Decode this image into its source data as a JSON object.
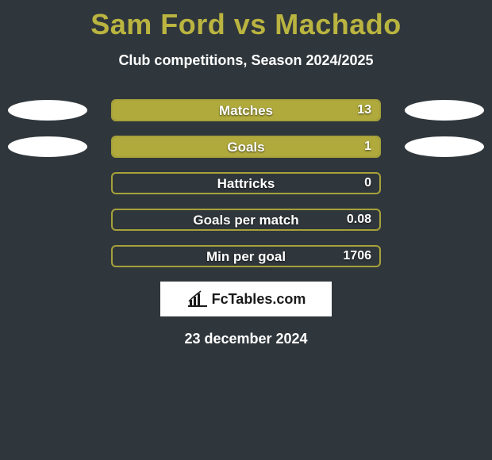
{
  "background_color": "#30373c",
  "title": {
    "text": "Sam Ford vs Machado",
    "color": "#bab440",
    "fontsize": 36
  },
  "subtitle": {
    "text": "Club competitions, Season 2024/2025",
    "color": "#ffffff",
    "fontsize": 18
  },
  "ellipse": {
    "color": "#ffffff",
    "width": 100,
    "height": 26
  },
  "bar_style": {
    "track_width": 340,
    "track_height": 28,
    "border_color": "#a7a13a",
    "fill_color": "#b0aa3d",
    "border_radius": 6,
    "label_color": "#ffffff",
    "value_color": "#ffffff",
    "label_fontsize": 17,
    "value_fontsize": 16
  },
  "stats": [
    {
      "label": "Matches",
      "left_pct": 0,
      "right_pct": 100,
      "value_right": "13",
      "show_ellipses": true
    },
    {
      "label": "Goals",
      "left_pct": 0,
      "right_pct": 100,
      "value_right": "1",
      "show_ellipses": true
    },
    {
      "label": "Hattricks",
      "left_pct": 0,
      "right_pct": 0,
      "value_right": "0",
      "show_ellipses": false
    },
    {
      "label": "Goals per match",
      "left_pct": 0,
      "right_pct": 0,
      "value_right": "0.08",
      "show_ellipses": false
    },
    {
      "label": "Min per goal",
      "left_pct": 0,
      "right_pct": 0,
      "value_right": "1706",
      "show_ellipses": false
    }
  ],
  "logo": {
    "text": "FcTables.com",
    "box_bg": "#ffffff",
    "text_color": "#1a1a1a",
    "icon_name": "bar-chart-icon"
  },
  "date": {
    "text": "23 december 2024",
    "color": "#ffffff",
    "fontsize": 18
  }
}
